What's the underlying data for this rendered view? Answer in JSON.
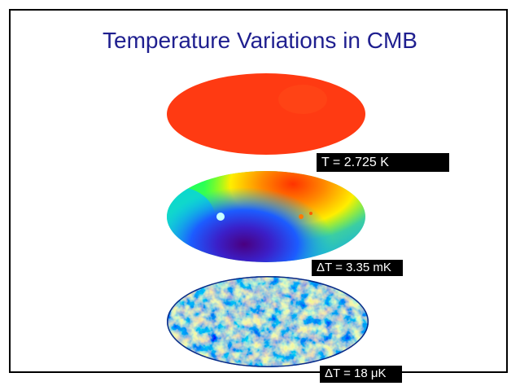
{
  "slide": {
    "title": "Temperature Variations in CMB"
  },
  "maps": [
    {
      "name": "uniform-map",
      "label": "T = 2.725 K"
    },
    {
      "name": "dipole-map",
      "label": "ΔT = 3.35 mK"
    },
    {
      "name": "anisotropy-map",
      "label": "ΔT = 18 μK"
    }
  ],
  "colors": {
    "title": "#1f1f8f",
    "uniform": "#ff3a12",
    "label_bg": "#000000",
    "label_text": "#ffffff"
  }
}
